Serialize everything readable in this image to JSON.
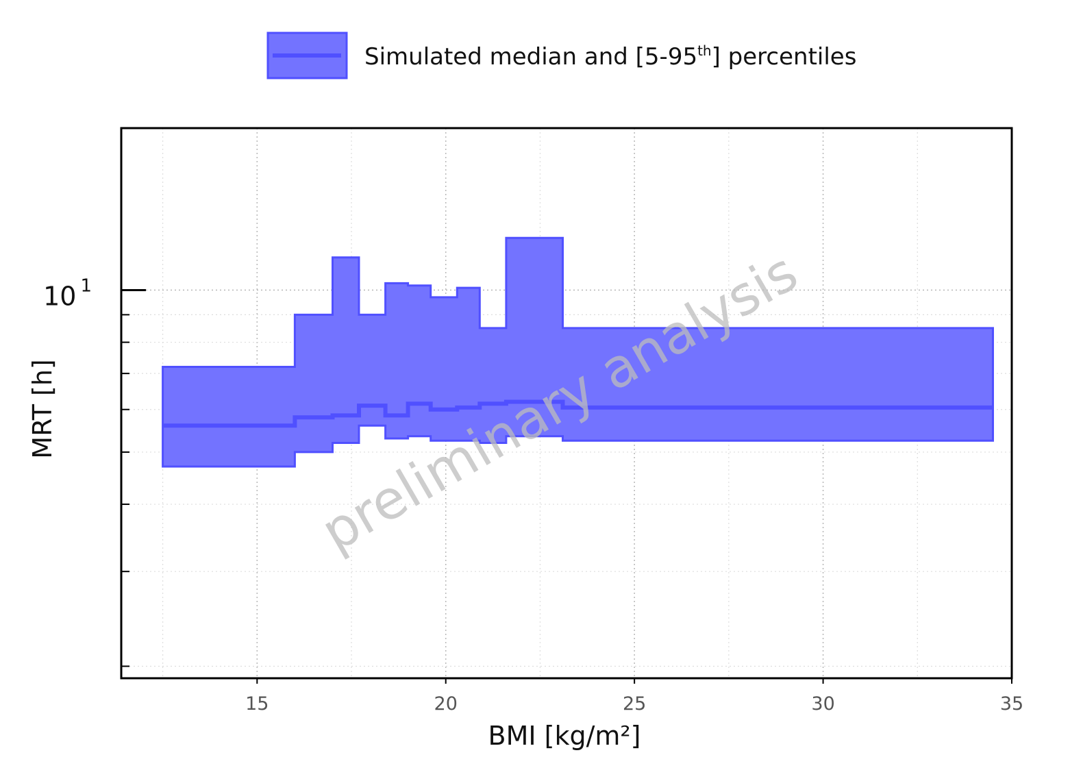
{
  "chart_data": {
    "type": "area",
    "step": true,
    "legend": {
      "label_main": "Simulated median and [5-95",
      "label_sup": "th",
      "label_end": "] percentiles",
      "placement": "top-center"
    },
    "xlabel": "BMI [kg/m²]",
    "ylabel": "MRT [h]",
    "xlim": [
      11.4,
      35
    ],
    "ylim": [
      1.9,
      20
    ],
    "yscale": "log",
    "xticks": [
      15,
      20,
      25,
      30,
      35
    ],
    "yticks_labeled": [
      {
        "value": 10,
        "base": "10",
        "exp": "1"
      }
    ],
    "grid": true,
    "watermark": "preliminary analysis",
    "series": [
      {
        "name": "Simulated median and [5-95th] percentiles",
        "color": "#5050ff",
        "fill_color": "#7373ff",
        "bins": [
          {
            "x0": 12.5,
            "x1": 16.0,
            "median": 5.6,
            "p5": 4.7,
            "p95": 7.2
          },
          {
            "x0": 16.0,
            "x1": 17.0,
            "median": 5.8,
            "p5": 5.0,
            "p95": 9.0
          },
          {
            "x0": 17.0,
            "x1": 17.7,
            "median": 5.85,
            "p5": 5.2,
            "p95": 11.5
          },
          {
            "x0": 17.7,
            "x1": 18.4,
            "median": 6.1,
            "p5": 5.6,
            "p95": 9.0
          },
          {
            "x0": 18.4,
            "x1": 19.0,
            "median": 5.85,
            "p5": 5.3,
            "p95": 10.3
          },
          {
            "x0": 19.0,
            "x1": 19.6,
            "median": 6.15,
            "p5": 5.35,
            "p95": 10.2
          },
          {
            "x0": 19.6,
            "x1": 20.3,
            "median": 6.0,
            "p5": 5.25,
            "p95": 9.7
          },
          {
            "x0": 20.3,
            "x1": 20.9,
            "median": 6.05,
            "p5": 5.25,
            "p95": 10.1
          },
          {
            "x0": 20.9,
            "x1": 21.6,
            "median": 6.15,
            "p5": 5.2,
            "p95": 8.5
          },
          {
            "x0": 21.6,
            "x1": 23.1,
            "median": 6.2,
            "p5": 5.35,
            "p95": 12.5
          },
          {
            "x0": 23.1,
            "x1": 34.5,
            "median": 6.05,
            "p5": 5.25,
            "p95": 8.5
          }
        ]
      }
    ]
  }
}
